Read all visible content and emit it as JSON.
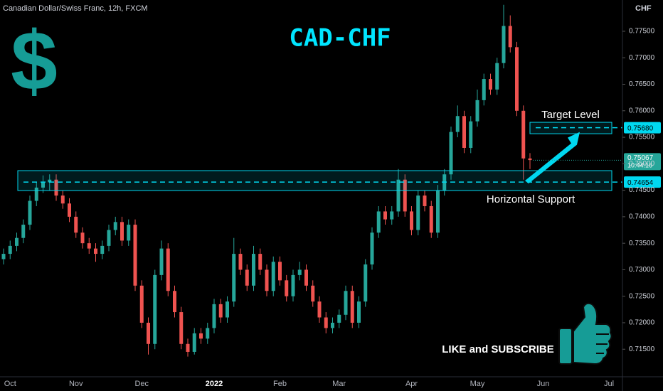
{
  "chart_data": {
    "type": "candlestick",
    "header": "Canadian Dollar/Swiss Franc, 12h, FXCM",
    "title": "CAD-CHF",
    "icon_text": "$",
    "y_axis_title": "CHF",
    "call_to_action": "LIKE and SUBSCRIBE",
    "up_color": "#26a69a",
    "down_color": "#ef5350",
    "title_color": "#00e5ff",
    "level_color": "#00d8f0",
    "grid": false,
    "categories": [
      null,
      "Oct",
      null,
      null,
      null,
      null,
      null,
      null,
      null,
      null,
      null,
      "Nov",
      null,
      null,
      null,
      null,
      null,
      null,
      null,
      null,
      null,
      "Dec",
      null,
      null,
      null,
      null,
      null,
      null,
      null,
      null,
      null,
      null,
      "2022",
      null,
      null,
      null,
      null,
      null,
      null,
      null,
      null,
      null,
      "Feb",
      null,
      null,
      null,
      null,
      null,
      null,
      null,
      null,
      "Mar",
      null,
      null,
      null,
      null,
      null,
      null,
      null,
      null,
      null,
      null,
      "Apr",
      null,
      null,
      null,
      null,
      null,
      null,
      null,
      null,
      null,
      "May",
      null,
      null,
      null,
      null,
      null,
      null,
      null,
      null,
      null,
      "Jun",
      null,
      null,
      null,
      null,
      null,
      null,
      null,
      null,
      null,
      "Jul"
    ],
    "open": [
      0.732,
      0.733,
      0.7345,
      0.736,
      0.7385,
      0.743,
      0.7455,
      0.7465,
      0.747,
      0.744,
      0.7425,
      0.74,
      0.737,
      0.735,
      0.734,
      0.733,
      0.7345,
      0.7375,
      0.739,
      0.7355,
      0.7385,
      0.727,
      0.72,
      0.716,
      0.729,
      0.734,
      0.726,
      0.722,
      0.716,
      0.7145,
      0.718,
      0.717,
      0.719,
      0.7235,
      0.721,
      0.724,
      0.733,
      0.73,
      0.727,
      0.733,
      0.73,
      0.726,
      0.7315,
      0.728,
      0.725,
      0.729,
      0.73,
      0.727,
      0.724,
      0.721,
      0.719,
      0.72,
      0.7215,
      0.726,
      0.72,
      0.724,
      0.731,
      0.737,
      0.741,
      0.7395,
      0.741,
      0.747,
      0.741,
      0.7375,
      0.744,
      0.742,
      0.737,
      0.745,
      0.748,
      0.756,
      0.759,
      0.753,
      0.758,
      0.762,
      0.766,
      0.764,
      0.769,
      0.776,
      0.772,
      0.76,
      0.751,
      null,
      null,
      null,
      null,
      null,
      null,
      null,
      null,
      null,
      null,
      null,
      null
    ],
    "high": [
      0.734,
      0.7355,
      0.737,
      0.7395,
      0.744,
      0.7465,
      0.7478,
      0.748,
      0.748,
      0.745,
      0.7435,
      0.741,
      0.738,
      0.736,
      0.735,
      0.7355,
      0.7385,
      0.74,
      0.74,
      0.7395,
      0.7395,
      0.728,
      0.721,
      0.73,
      0.7355,
      0.735,
      0.727,
      0.723,
      0.717,
      0.719,
      0.719,
      0.72,
      0.7245,
      0.7245,
      0.725,
      0.736,
      0.734,
      0.731,
      0.7345,
      0.734,
      0.731,
      0.7325,
      0.7325,
      0.729,
      0.73,
      0.7315,
      0.731,
      0.728,
      0.725,
      0.722,
      0.721,
      0.7225,
      0.727,
      0.727,
      0.725,
      0.732,
      0.738,
      0.742,
      0.742,
      0.742,
      0.749,
      0.748,
      0.742,
      0.745,
      0.745,
      0.743,
      0.746,
      0.749,
      0.757,
      0.761,
      0.76,
      0.759,
      0.764,
      0.767,
      0.767,
      0.77,
      0.78,
      0.778,
      0.773,
      0.761,
      0.752,
      null,
      null,
      null,
      null,
      null,
      null,
      null,
      null,
      null,
      null,
      null,
      null
    ],
    "low": [
      0.731,
      0.732,
      0.7335,
      0.735,
      0.7375,
      0.742,
      0.7445,
      0.745,
      0.743,
      0.7415,
      0.739,
      0.736,
      0.734,
      0.733,
      0.7315,
      0.732,
      0.7335,
      0.7365,
      0.7345,
      0.7345,
      0.726,
      0.719,
      0.714,
      0.715,
      0.728,
      0.725,
      0.721,
      0.715,
      0.7136,
      0.714,
      0.716,
      0.716,
      0.718,
      0.72,
      0.72,
      0.723,
      0.729,
      0.726,
      0.726,
      0.729,
      0.725,
      0.725,
      0.727,
      0.724,
      0.724,
      0.728,
      0.726,
      0.723,
      0.72,
      0.718,
      0.718,
      0.719,
      0.7205,
      0.719,
      0.719,
      0.723,
      0.73,
      0.736,
      0.7385,
      0.7385,
      0.74,
      0.74,
      0.7365,
      0.7365,
      0.741,
      0.736,
      0.736,
      0.744,
      0.747,
      0.755,
      0.752,
      0.752,
      0.757,
      0.761,
      0.763,
      0.763,
      0.768,
      0.771,
      0.759,
      0.747,
      0.749,
      null,
      null,
      null,
      null,
      null,
      null,
      null,
      null,
      null,
      null,
      null,
      null
    ],
    "close": [
      0.733,
      0.7345,
      0.736,
      0.7385,
      0.743,
      0.7455,
      0.7465,
      0.747,
      0.744,
      0.7425,
      0.74,
      0.737,
      0.735,
      0.734,
      0.733,
      0.7345,
      0.7375,
      0.739,
      0.7355,
      0.7385,
      0.727,
      0.72,
      0.716,
      0.729,
      0.734,
      0.726,
      0.722,
      0.716,
      0.7145,
      0.718,
      0.717,
      0.719,
      0.7235,
      0.721,
      0.724,
      0.733,
      0.73,
      0.727,
      0.733,
      0.73,
      0.726,
      0.7315,
      0.728,
      0.725,
      0.729,
      0.73,
      0.727,
      0.724,
      0.721,
      0.719,
      0.72,
      0.7215,
      0.726,
      0.72,
      0.724,
      0.731,
      0.737,
      0.741,
      0.7395,
      0.741,
      0.747,
      0.741,
      0.7375,
      0.744,
      0.742,
      0.737,
      0.745,
      0.748,
      0.756,
      0.759,
      0.753,
      0.758,
      0.762,
      0.766,
      0.764,
      0.769,
      0.776,
      0.772,
      0.76,
      0.751,
      0.7507,
      null,
      null,
      null,
      null,
      null,
      null,
      null,
      null,
      null,
      null,
      null,
      null
    ],
    "ylim": [
      0.7098,
      0.7809
    ],
    "yticks": [
      {
        "value": 0.715,
        "label": "0.71500"
      },
      {
        "value": 0.72,
        "label": "0.72000"
      },
      {
        "value": 0.725,
        "label": "0.72500"
      },
      {
        "value": 0.73,
        "label": "0.73000"
      },
      {
        "value": 0.735,
        "label": "0.73500"
      },
      {
        "value": 0.74,
        "label": "0.74000"
      },
      {
        "value": 0.745,
        "label": "0.74500"
      },
      {
        "value": 0.75,
        "label": "0.75000"
      },
      {
        "value": 0.755,
        "label": "0.75500"
      },
      {
        "value": 0.76,
        "label": "0.76000"
      },
      {
        "value": 0.765,
        "label": "0.76500"
      },
      {
        "value": 0.77,
        "label": "0.77000"
      },
      {
        "value": 0.775,
        "label": "0.77500"
      }
    ],
    "levels": [
      {
        "name": "Target Level",
        "value": 0.7568,
        "value_label": "0.75680",
        "zone": [
          0.75567,
          0.75782
        ]
      },
      {
        "name": "Horizontal Support",
        "value": 0.74654,
        "value_label": "0.74654",
        "zone": [
          0.74495,
          0.7487
        ]
      }
    ],
    "last_price": {
      "value": 0.75067,
      "label": "0.75067",
      "countdown": "10:44:16"
    }
  }
}
